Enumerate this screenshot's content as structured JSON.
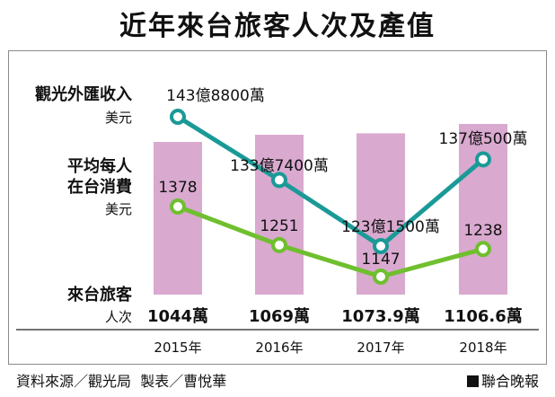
{
  "header": {
    "title": "近年來台旅客人次及產值"
  },
  "chart_data": {
    "type": "bar",
    "categories": [
      "2015年",
      "2016年",
      "2017年",
      "2018年"
    ],
    "series": [
      {
        "name": "觀光外匯收入",
        "unit": "美元",
        "type": "line",
        "values": [
          14388,
          13374,
          12315,
          13705
        ],
        "labels": [
          "143億8800萬",
          "133億7400萬",
          "123億1500萬",
          "137億500萬"
        ],
        "color": "#1a9a97"
      },
      {
        "name": "平均每人在台消費",
        "unit": "美元",
        "type": "line",
        "values": [
          1378,
          1251,
          1147,
          1238
        ],
        "labels": [
          "1378",
          "1251",
          "1147",
          "1238"
        ],
        "color": "#6fbf2e"
      },
      {
        "name": "來台旅客",
        "unit": "人次",
        "type": "bar",
        "values": [
          10440000,
          10690000,
          10739000,
          11066000
        ],
        "labels": [
          "1044萬",
          "1069萬",
          "1073.9萬",
          "1106.6萬"
        ],
        "color": "#d9a9cf"
      }
    ],
    "side_labels": {
      "income_line1": "觀光外匯收入",
      "income_unit": "美元",
      "spend_line1": "平均每人",
      "spend_line2": "在台消費",
      "spend_unit": "美元",
      "visitors_line1": "來台旅客",
      "visitors_unit": "人次"
    },
    "legend": "left side labels",
    "grid": false
  },
  "footer": {
    "source": "資料來源／觀光局",
    "credit": "製表／曹悅華",
    "publisher": "聯合晚報"
  }
}
